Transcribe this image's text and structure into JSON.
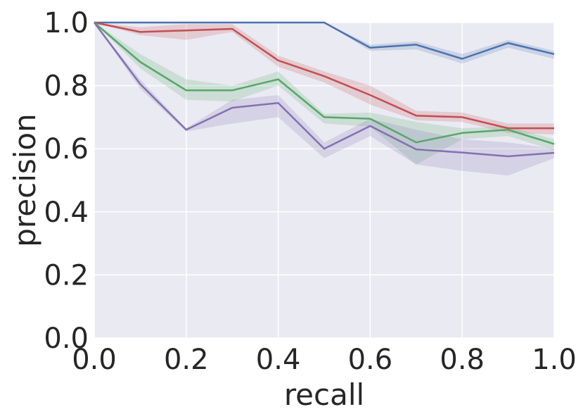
{
  "chart_data": {
    "type": "line",
    "title": "",
    "xlabel": "recall",
    "ylabel": "precision",
    "xlim": [
      0.0,
      1.0
    ],
    "ylim": [
      0.0,
      1.0
    ],
    "xticks": [
      "0.0",
      "0.2",
      "0.4",
      "0.6",
      "0.8",
      "1.0"
    ],
    "yticks": [
      "0.0",
      "0.2",
      "0.4",
      "0.6",
      "0.8",
      "1.0"
    ],
    "grid": true,
    "legend": "none",
    "background_color": "#EAEAF2",
    "x": [
      0.0,
      0.1,
      0.2,
      0.3,
      0.4,
      0.5,
      0.6,
      0.7,
      0.8,
      0.9,
      1.0
    ],
    "series": [
      {
        "color": "#4C72B0",
        "values": [
          1.0,
          1.0,
          1.0,
          1.0,
          1.0,
          1.0,
          0.92,
          0.93,
          0.885,
          0.935,
          0.9
        ],
        "lower": [
          1.0,
          1.0,
          1.0,
          1.0,
          1.0,
          1.0,
          0.91,
          0.915,
          0.87,
          0.92,
          0.885
        ],
        "upper": [
          1.0,
          1.0,
          1.0,
          1.0,
          1.0,
          1.0,
          0.93,
          0.94,
          0.9,
          0.945,
          0.91
        ]
      },
      {
        "color": "#C44E52",
        "values": [
          1.0,
          0.97,
          0.975,
          0.98,
          0.88,
          0.83,
          0.77,
          0.705,
          0.7,
          0.665,
          0.665
        ],
        "lower": [
          1.0,
          0.96,
          0.945,
          0.97,
          0.86,
          0.81,
          0.74,
          0.69,
          0.685,
          0.65,
          0.645
        ],
        "upper": [
          1.0,
          0.985,
          0.995,
          0.995,
          0.895,
          0.845,
          0.8,
          0.72,
          0.715,
          0.68,
          0.68
        ]
      },
      {
        "color": "#55A868",
        "values": [
          1.0,
          0.875,
          0.785,
          0.785,
          0.82,
          0.7,
          0.695,
          0.62,
          0.65,
          0.66,
          0.615
        ],
        "lower": [
          1.0,
          0.855,
          0.755,
          0.75,
          0.8,
          0.68,
          0.67,
          0.55,
          0.63,
          0.64,
          0.595
        ],
        "upper": [
          1.0,
          0.9,
          0.82,
          0.8,
          0.845,
          0.71,
          0.715,
          0.685,
          0.665,
          0.67,
          0.63
        ]
      },
      {
        "color": "#8172B2",
        "values": [
          1.0,
          0.805,
          0.66,
          0.73,
          0.745,
          0.6,
          0.672,
          0.598,
          0.588,
          0.576,
          0.587
        ],
        "lower": [
          1.0,
          0.79,
          0.655,
          0.68,
          0.7,
          0.57,
          0.64,
          0.55,
          0.53,
          0.515,
          0.57
        ],
        "upper": [
          1.0,
          0.82,
          0.665,
          0.755,
          0.77,
          0.62,
          0.695,
          0.66,
          0.63,
          0.62,
          0.6
        ]
      }
    ]
  }
}
